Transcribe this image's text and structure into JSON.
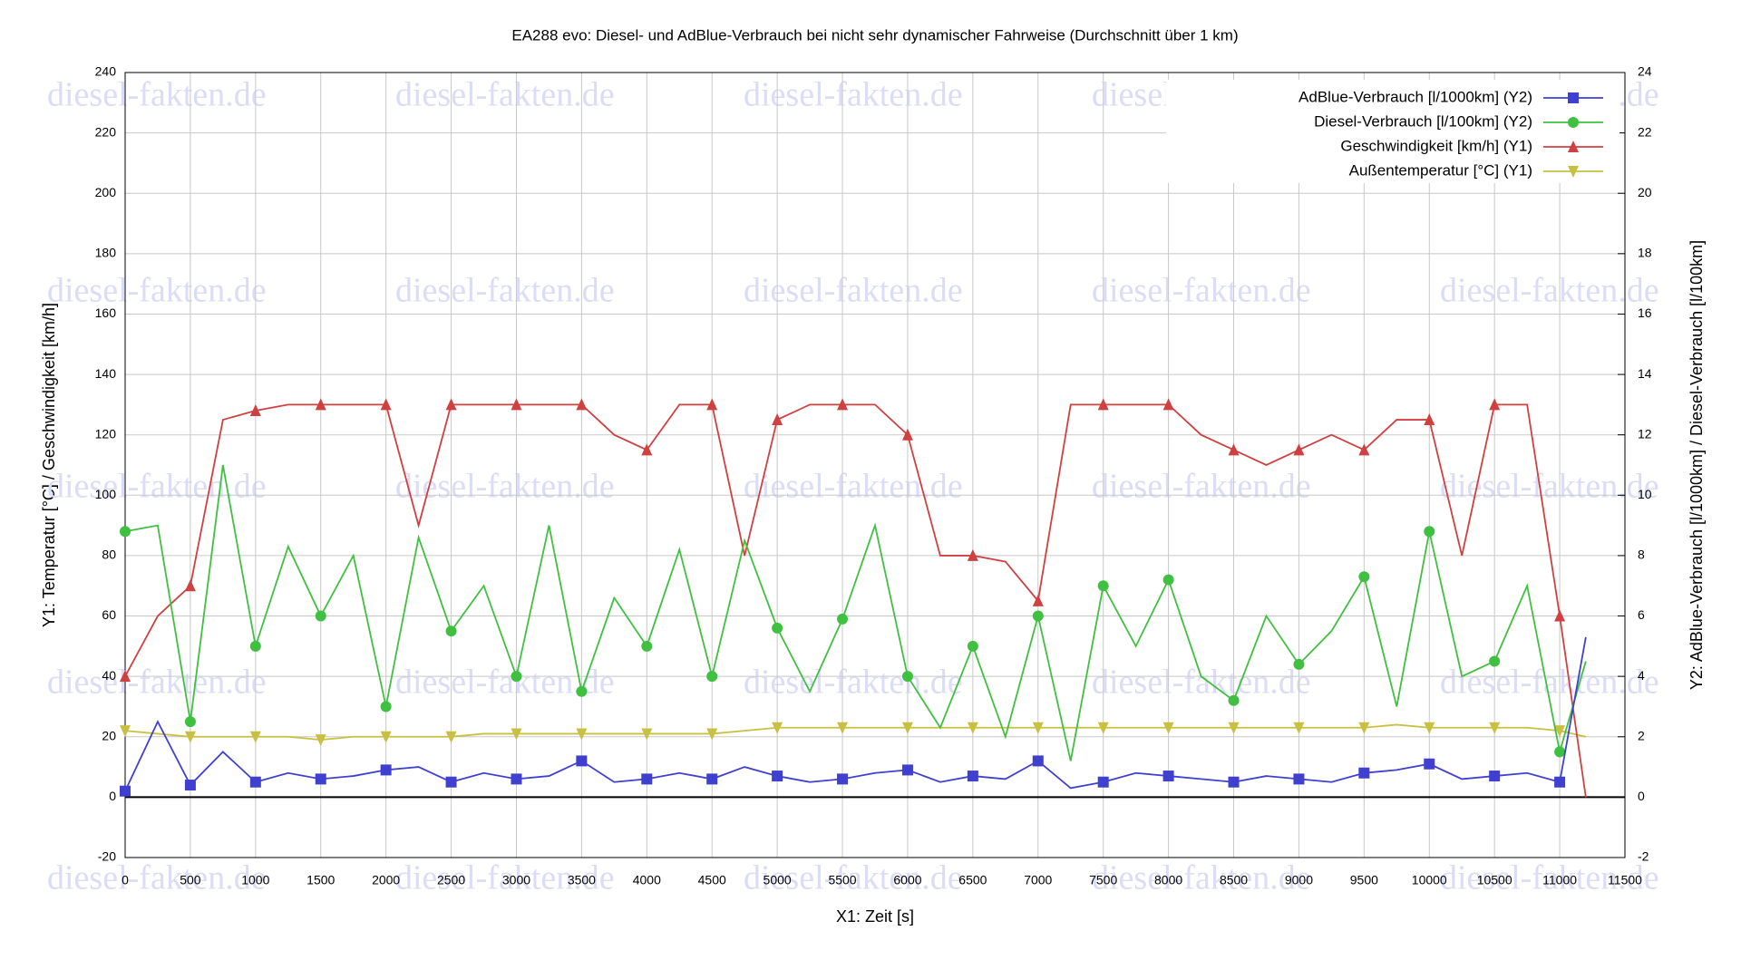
{
  "chart_data": {
    "type": "line",
    "title": "EA288 evo: Diesel- und AdBlue-Verbrauch bei nicht sehr dynamischer Fahrweise (Durchschnitt über 1 km)",
    "watermark": "diesel-fakten.de",
    "x_label": "X1: Zeit [s]",
    "y_label": "Y1: Temperatur [°C] / Geschwindigkeit [km/h]",
    "y2_label": "Y2: AdBlue-Verbrauch [l/1000km] / Diesel-Verbrauch [l/100km]",
    "x": [
      0,
      250,
      500,
      750,
      1000,
      1250,
      1500,
      1750,
      2000,
      2250,
      2500,
      2750,
      3000,
      3250,
      3500,
      3750,
      4000,
      4250,
      4500,
      4750,
      5000,
      5250,
      5500,
      5750,
      6000,
      6250,
      6500,
      6750,
      7000,
      7250,
      7500,
      7750,
      8000,
      8250,
      8500,
      8750,
      9000,
      9250,
      9500,
      9750,
      10000,
      10250,
      10500,
      10750,
      11000,
      11200
    ],
    "series": [
      {
        "name": "AdBlue-Verbrauch [l/1000km] (Y2)",
        "color": "#4040d0",
        "marker": "square",
        "axis": "y2",
        "values": [
          0.2,
          2.5,
          0.4,
          1.5,
          0.5,
          0.8,
          0.6,
          0.7,
          0.9,
          1.0,
          0.5,
          0.8,
          0.6,
          0.7,
          1.2,
          0.5,
          0.6,
          0.8,
          0.6,
          1.0,
          0.7,
          0.5,
          0.6,
          0.8,
          0.9,
          0.5,
          0.7,
          0.6,
          1.2,
          0.3,
          0.5,
          0.8,
          0.7,
          0.6,
          0.5,
          0.7,
          0.6,
          0.5,
          0.8,
          0.9,
          1.1,
          0.6,
          0.7,
          0.8,
          0.5,
          5.3
        ]
      },
      {
        "name": "Diesel-Verbrauch [l/100km] (Y2)",
        "color": "#40c040",
        "marker": "circle",
        "axis": "y2",
        "values": [
          8.8,
          9.0,
          2.5,
          11.0,
          5.0,
          8.3,
          6.0,
          8.0,
          3.0,
          8.6,
          5.5,
          7.0,
          4.0,
          9.0,
          3.5,
          6.6,
          5.0,
          8.2,
          4.0,
          8.5,
          5.6,
          3.5,
          5.9,
          9.0,
          4.0,
          2.3,
          5.0,
          2.0,
          6.0,
          1.2,
          7.0,
          5.0,
          7.2,
          4.0,
          3.2,
          6.0,
          4.4,
          5.5,
          7.3,
          3.0,
          8.8,
          4.0,
          4.5,
          7.0,
          1.5,
          4.5
        ]
      },
      {
        "name": "Geschwindigkeit [km/h] (Y1)",
        "color": "#d04040",
        "marker": "triangle-up",
        "axis": "y",
        "values": [
          40,
          60,
          70,
          125,
          128,
          130,
          130,
          130,
          130,
          90,
          130,
          130,
          130,
          130,
          130,
          120,
          115,
          130,
          130,
          80,
          125,
          130,
          130,
          130,
          120,
          80,
          80,
          78,
          65,
          130,
          130,
          130,
          130,
          120,
          115,
          110,
          115,
          120,
          115,
          125,
          125,
          80,
          130,
          130,
          60,
          0
        ]
      },
      {
        "name": "Außentemperatur [°C] (Y1)",
        "color": "#c8c040",
        "marker": "triangle-down",
        "axis": "y",
        "values": [
          22,
          21,
          20,
          20,
          20,
          20,
          19,
          20,
          20,
          20,
          20,
          21,
          21,
          21,
          21,
          21,
          21,
          21,
          21,
          22,
          23,
          23,
          23,
          23,
          23,
          23,
          23,
          23,
          23,
          23,
          23,
          23,
          23,
          23,
          23,
          23,
          23,
          23,
          23,
          24,
          23,
          23,
          23,
          23,
          22,
          20
        ]
      }
    ],
    "xlim": [
      0,
      11500
    ],
    "xticks": [
      0,
      500,
      1000,
      1500,
      2000,
      2500,
      3000,
      3500,
      4000,
      4500,
      5000,
      5500,
      6000,
      6500,
      7000,
      7500,
      8000,
      8500,
      9000,
      9500,
      10000,
      10500,
      11000,
      11500
    ],
    "ylim": [
      -20,
      240
    ],
    "yticks": [
      -20,
      0,
      20,
      40,
      60,
      80,
      100,
      120,
      140,
      160,
      180,
      200,
      220,
      240
    ],
    "y2lim": [
      -2,
      24
    ],
    "y2ticks": [
      -2,
      0,
      2,
      4,
      6,
      8,
      10,
      12,
      14,
      16,
      18,
      20,
      22,
      24
    ],
    "grid": true,
    "legend": "top-right"
  }
}
